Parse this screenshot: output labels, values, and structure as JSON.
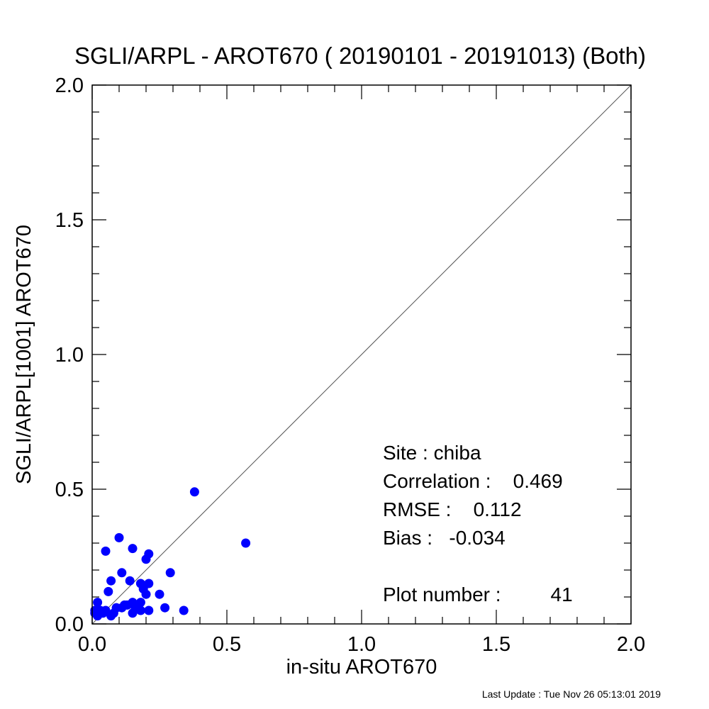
{
  "chart_data": {
    "type": "scatter",
    "title": "SGLI/ARPL - AROT670 ( 20190101 - 20191013) (Both)",
    "xlabel": "in-situ AROT670",
    "ylabel": "SGLI/ARPL[1001]    AROT670",
    "xlim": [
      0.0,
      2.0
    ],
    "ylim": [
      0.0,
      2.0
    ],
    "xticks": [
      0.0,
      0.5,
      1.0,
      1.5,
      2.0
    ],
    "yticks": [
      0.0,
      0.5,
      1.0,
      1.5,
      2.0
    ],
    "xtick_labels": [
      "0.0",
      "0.5",
      "1.0",
      "1.5",
      "2.0"
    ],
    "ytick_labels": [
      "0.0",
      "0.5",
      "1.0",
      "1.5",
      "2.0"
    ],
    "grid": false,
    "reference_line": "1:1",
    "point_color": "#0000ff",
    "series": [
      {
        "points": [
          [
            0.38,
            0.49
          ],
          [
            0.57,
            0.3
          ],
          [
            0.1,
            0.32
          ],
          [
            0.05,
            0.27
          ],
          [
            0.15,
            0.28
          ],
          [
            0.21,
            0.26
          ],
          [
            0.2,
            0.24
          ],
          [
            0.29,
            0.19
          ],
          [
            0.11,
            0.19
          ],
          [
            0.07,
            0.16
          ],
          [
            0.14,
            0.16
          ],
          [
            0.18,
            0.15
          ],
          [
            0.21,
            0.15
          ],
          [
            0.06,
            0.12
          ],
          [
            0.19,
            0.13
          ],
          [
            0.2,
            0.11
          ],
          [
            0.25,
            0.11
          ],
          [
            0.02,
            0.08
          ],
          [
            0.15,
            0.08
          ],
          [
            0.18,
            0.08
          ],
          [
            0.13,
            0.07
          ],
          [
            0.16,
            0.07
          ],
          [
            0.09,
            0.06
          ],
          [
            0.11,
            0.06
          ],
          [
            0.18,
            0.05
          ],
          [
            0.21,
            0.05
          ],
          [
            0.27,
            0.06
          ],
          [
            0.34,
            0.05
          ],
          [
            0.01,
            0.05
          ],
          [
            0.03,
            0.05
          ],
          [
            0.02,
            0.04
          ],
          [
            0.04,
            0.04
          ],
          [
            0.08,
            0.04
          ],
          [
            0.15,
            0.04
          ],
          [
            0.02,
            0.03
          ],
          [
            0.07,
            0.03
          ],
          [
            0.09,
            0.06
          ],
          [
            0.12,
            0.07
          ],
          [
            0.16,
            0.06
          ],
          [
            0.05,
            0.05
          ],
          [
            0.01,
            0.04
          ]
        ]
      }
    ],
    "stats": {
      "site": "Site : chiba",
      "correlation": "Correlation :    0.469",
      "rmse": "RMSE :    0.112",
      "bias": "Bias :   -0.034",
      "plot_number": "Plot number :         41"
    },
    "footer": "Last Update : Tue Nov 26 05:13:01 2019"
  }
}
